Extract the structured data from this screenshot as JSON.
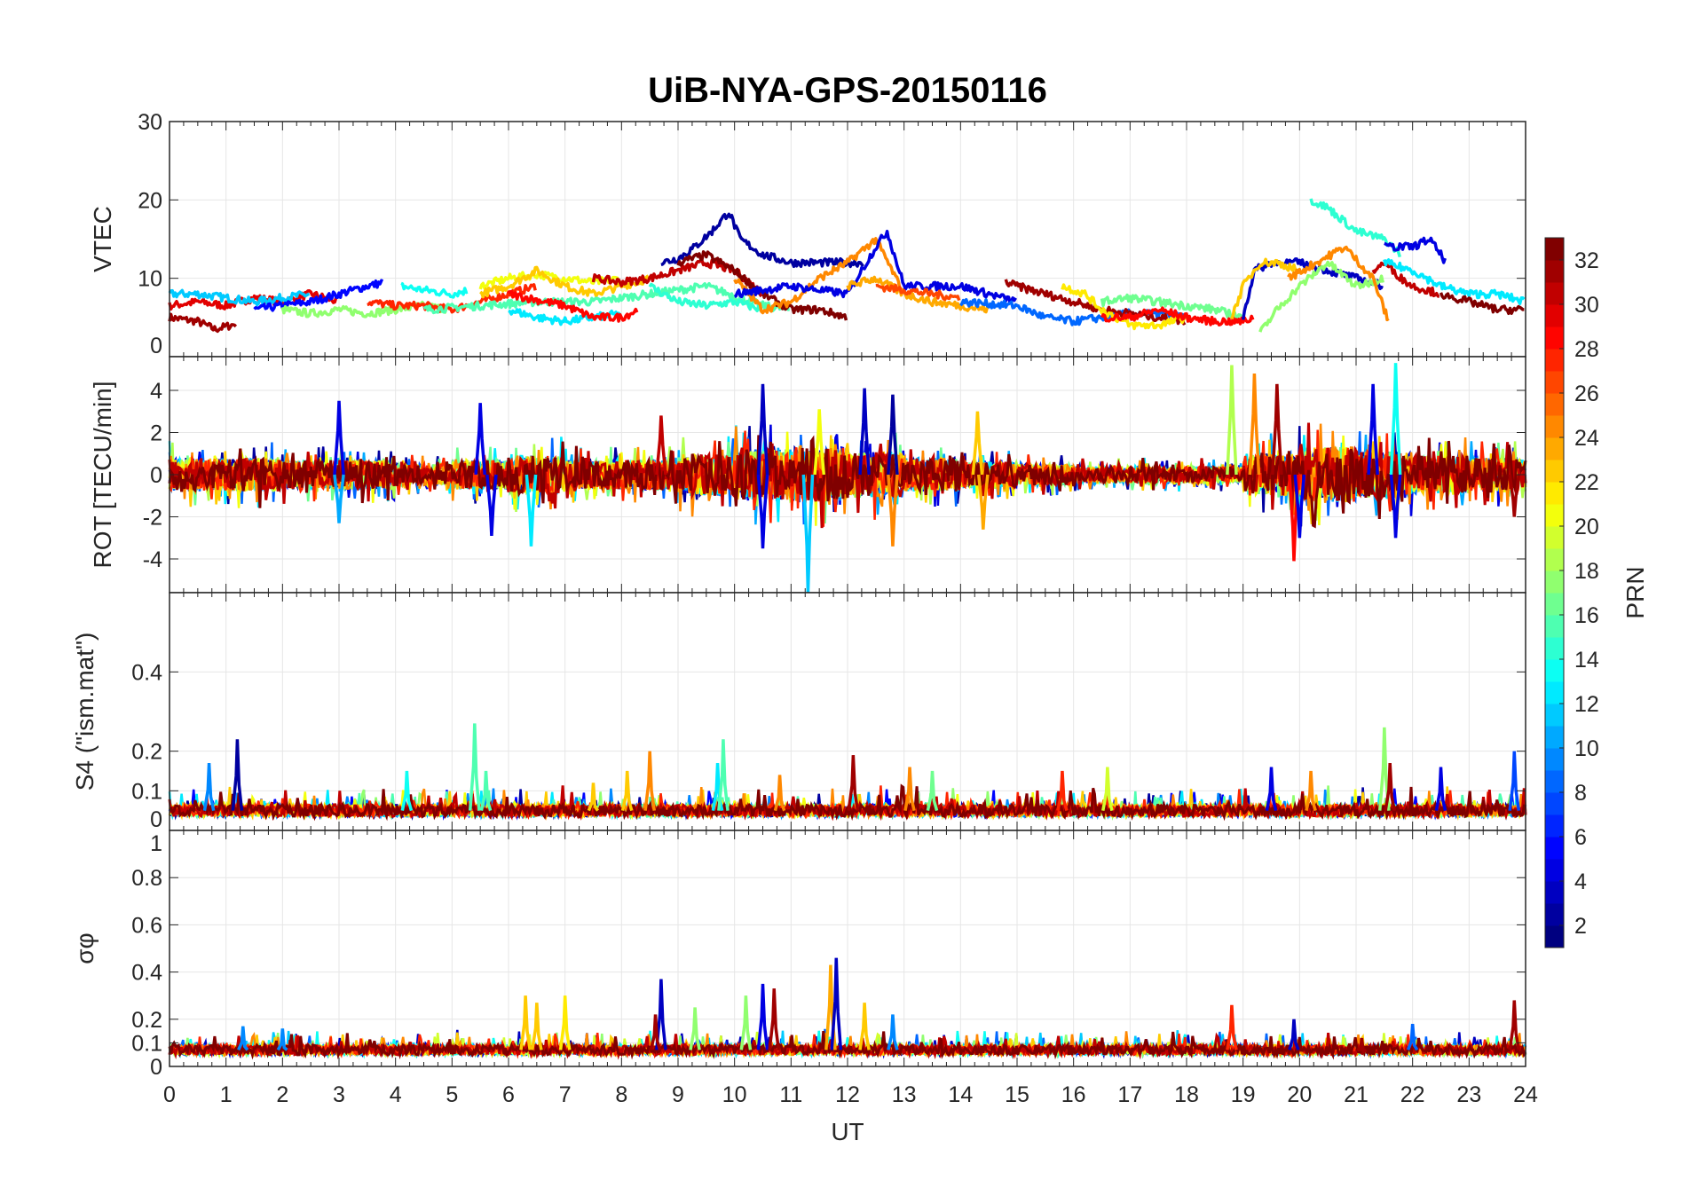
{
  "chart_data": {
    "type": "line",
    "title": "UiB-NYA-GPS-20150116",
    "xlabel": "UT",
    "xlim": [
      0,
      24
    ],
    "xticks": [
      0,
      1,
      2,
      3,
      4,
      5,
      6,
      7,
      8,
      9,
      10,
      11,
      12,
      13,
      14,
      15,
      16,
      17,
      18,
      19,
      20,
      21,
      22,
      23,
      24
    ],
    "grid": true,
    "colorbar": {
      "label": "PRN",
      "range": [
        1,
        32
      ],
      "ticks": [
        2,
        4,
        6,
        8,
        10,
        12,
        14,
        16,
        18,
        20,
        22,
        24,
        26,
        28,
        30,
        32
      ],
      "colormap": "jet",
      "placement": "right"
    },
    "panels": [
      {
        "id": "vtec",
        "ylabel": "VTEC",
        "ylim": [
          0,
          30
        ],
        "yticks": [
          0,
          10,
          20,
          30
        ],
        "noise": 0.5,
        "series": [
          {
            "prn": 31,
            "x": [
              0,
              0.5,
              0.8,
              1.2
            ],
            "y": [
              5,
              4.5,
              3.5,
              4.2
            ]
          },
          {
            "prn": 29,
            "x": [
              0,
              0.5,
              1,
              1.5,
              2,
              2.5,
              3
            ],
            "y": [
              6.5,
              7,
              6.5,
              7.5,
              7,
              8,
              7
            ]
          },
          {
            "prn": 11,
            "x": [
              0,
              0.5,
              1,
              1.5,
              2,
              2.5
            ],
            "y": [
              8,
              8,
              7.5,
              7,
              7.5,
              8
            ]
          },
          {
            "prn": 5,
            "x": [
              1.5,
              2,
              2.5,
              3,
              3.5,
              3.8
            ],
            "y": [
              6,
              6.5,
              7,
              8,
              9,
              9.5
            ]
          },
          {
            "prn": 17,
            "x": [
              2,
              2.5,
              3,
              3.5,
              4,
              4.5,
              5
            ],
            "y": [
              6,
              5.5,
              6,
              5.5,
              6,
              6.5,
              6
            ]
          },
          {
            "prn": 13,
            "x": [
              4.1,
              4.5,
              5,
              5.3
            ],
            "y": [
              9,
              8.5,
              8,
              8.5
            ]
          },
          {
            "prn": 27,
            "x": [
              3.5,
              4,
              4.5,
              5,
              5.5,
              6,
              6.5
            ],
            "y": [
              7,
              6.5,
              6.5,
              6,
              7,
              8,
              9
            ]
          },
          {
            "prn": 20,
            "x": [
              5.5,
              6,
              6.5,
              7,
              7.5,
              8
            ],
            "y": [
              9,
              10,
              10.5,
              10,
              9.5,
              10
            ]
          },
          {
            "prn": 22,
            "x": [
              5.5,
              6,
              6.5,
              7,
              7.5,
              8,
              8.5
            ],
            "y": [
              8,
              9,
              11,
              9,
              8,
              9,
              10
            ]
          },
          {
            "prn": 15,
            "x": [
              4.5,
              5.5,
              6.5,
              7.5,
              8.5,
              9.5,
              10.5,
              11
            ],
            "y": [
              6,
              6.5,
              7,
              7,
              8,
              9,
              6.5,
              6
            ]
          },
          {
            "prn": 12,
            "x": [
              6,
              6.5,
              7,
              7.5,
              8
            ],
            "y": [
              6,
              5,
              4.5,
              5,
              5.5
            ]
          },
          {
            "prn": 28,
            "x": [
              6,
              7,
              7.5,
              8,
              8.3
            ],
            "y": [
              8,
              6.5,
              5,
              5,
              6
            ]
          },
          {
            "prn": 30,
            "x": [
              7.5,
              8,
              8.5,
              9,
              9.5,
              10,
              10.5
            ],
            "y": [
              10,
              9.5,
              10,
              11,
              12,
              11,
              8
            ]
          },
          {
            "prn": 2,
            "x": [
              8.7,
              9,
              9.3,
              9.6,
              9.9,
              10.1,
              10.5,
              11,
              12,
              12.3
            ],
            "y": [
              12,
              12.5,
              14,
              16,
              18.5,
              15,
              13,
              12,
              12,
              12
            ]
          },
          {
            "prn": 14,
            "x": [
              8.5,
              9,
              9.5,
              10,
              10.5
            ],
            "y": [
              9,
              7,
              6.5,
              7,
              6
            ]
          },
          {
            "prn": 32,
            "x": [
              9,
              9.5,
              10,
              10.5,
              11,
              11.5,
              12
            ],
            "y": [
              12,
              13,
              11,
              8,
              6,
              6,
              5
            ]
          },
          {
            "prn": 24,
            "x": [
              10,
              10.5,
              11,
              11.5,
              12,
              12.5,
              13
            ],
            "y": [
              10,
              6,
              7,
              10,
              12,
              15,
              8
            ]
          },
          {
            "prn": 4,
            "x": [
              10,
              11,
              12,
              12.5,
              12.7,
              13,
              14,
              14.5,
              15
            ],
            "y": [
              8,
              9,
              8,
              14,
              16,
              9,
              9,
              8,
              7
            ]
          },
          {
            "prn": 23,
            "x": [
              12,
              12.5,
              13,
              13.5,
              14,
              14.5
            ],
            "y": [
              9,
              10,
              8,
              7,
              6.5,
              6
            ]
          },
          {
            "prn": 26,
            "x": [
              12.5,
              13,
              13.5,
              14
            ],
            "y": [
              9,
              8.5,
              8,
              7.5
            ]
          },
          {
            "prn": 8,
            "x": [
              14,
              15,
              15.5,
              16,
              16.5,
              17,
              17.5,
              18
            ],
            "y": [
              7,
              6.5,
              5,
              4.5,
              5,
              5.5,
              5.5,
              5
            ]
          },
          {
            "prn": 31,
            "x": [
              14.8,
              15,
              15.5,
              16,
              16.5,
              17,
              17.5,
              18
            ],
            "y": [
              9.5,
              9,
              8,
              7,
              6,
              5.5,
              5,
              4.5
            ]
          },
          {
            "prn": 21,
            "x": [
              15.8,
              16.2,
              16.5,
              17,
              17.5,
              18
            ],
            "y": [
              9,
              8,
              6,
              4,
              4,
              5
            ]
          },
          {
            "prn": 16,
            "x": [
              16.5,
              17,
              17.5,
              18,
              18.5,
              19
            ],
            "y": [
              7,
              7.5,
              7,
              6.5,
              6,
              5
            ]
          },
          {
            "prn": 28,
            "x": [
              16.5,
              17,
              17.5,
              18,
              18.5,
              19,
              19.2
            ],
            "y": [
              5,
              5,
              6,
              5,
              4.5,
              4.5,
              5
            ]
          },
          {
            "prn": 3,
            "x": [
              19,
              19.2,
              19.5,
              20,
              20.5,
              21,
              21.5
            ],
            "y": [
              5,
              11,
              12,
              12,
              11,
              10,
              9
            ]
          },
          {
            "prn": 22,
            "x": [
              18.8,
              19,
              19.3,
              19.6,
              20
            ],
            "y": [
              5,
              9,
              12,
              12,
              11
            ]
          },
          {
            "prn": 17,
            "x": [
              19.3,
              19.6,
              20,
              20.5,
              21,
              21.5
            ],
            "y": [
              3,
              6,
              9,
              12,
              9,
              10
            ]
          },
          {
            "prn": 14,
            "x": [
              20.2,
              20.5,
              21,
              21.5,
              21.8
            ],
            "y": [
              20,
              19,
              16,
              15,
              13
            ]
          },
          {
            "prn": 24,
            "x": [
              19.8,
              20.3,
              20.8,
              21.3,
              21.6
            ],
            "y": [
              10,
              12,
              14,
              10,
              4
            ]
          },
          {
            "prn": 30,
            "x": [
              21.3,
              21.5,
              21.8,
              22,
              22.5
            ],
            "y": [
              11,
              12,
              10,
              9,
              8
            ]
          },
          {
            "prn": 4,
            "x": [
              21.5,
              22,
              22.3,
              22.6
            ],
            "y": [
              14,
              14,
              15,
              12
            ]
          },
          {
            "prn": 12,
            "x": [
              21.5,
              22,
              22.5,
              23,
              23.5,
              24
            ],
            "y": [
              12,
              11,
              9,
              8,
              8,
              7
            ]
          },
          {
            "prn": 32,
            "x": [
              22.5,
              23,
              23.5,
              24
            ],
            "y": [
              8,
              7,
              6,
              6
            ]
          }
        ]
      },
      {
        "id": "rot",
        "ylabel": "ROT [TECU/min]",
        "ylim": [
          -5.6,
          5.6
        ],
        "yticks": [
          -4,
          -2,
          0,
          2,
          4
        ],
        "prns": [
          2,
          4,
          8,
          10,
          12,
          16,
          18,
          20,
          22,
          24,
          27,
          30,
          32
        ],
        "activity_hours": [
          0.8,
          0.8,
          0.7,
          0.7,
          0.5,
          0.7,
          0.9,
          0.7,
          0.7,
          1.0,
          1.2,
          1.3,
          1.1,
          0.8,
          0.6,
          0.5,
          0.4,
          0.4,
          0.4,
          1.0,
          1.3,
          1.1,
          0.9,
          0.8
        ],
        "spikes": [
          [
            3,
            3.5,
            4
          ],
          [
            3,
            -2.3,
            10
          ],
          [
            5.5,
            3.4,
            4
          ],
          [
            5.7,
            -2.9,
            4
          ],
          [
            6.4,
            -3.4,
            12
          ],
          [
            8.7,
            2.8,
            30
          ],
          [
            10.5,
            4.3,
            3
          ],
          [
            10.5,
            -3.5,
            4
          ],
          [
            11.3,
            -5.6,
            11
          ],
          [
            11.5,
            3.1,
            20
          ],
          [
            12.3,
            4.1,
            3
          ],
          [
            12.8,
            3.8,
            2
          ],
          [
            12.8,
            -3.4,
            24
          ],
          [
            14.3,
            3,
            22
          ],
          [
            14.4,
            -2.6,
            23
          ],
          [
            18.8,
            5.2,
            18
          ],
          [
            19.2,
            4.8,
            24
          ],
          [
            19.6,
            4.3,
            31
          ],
          [
            19.9,
            -4.1,
            28
          ],
          [
            20,
            -3,
            4
          ],
          [
            21.3,
            4.3,
            4
          ],
          [
            21.7,
            5.3,
            13
          ],
          [
            21.7,
            -3,
            4
          ],
          [
            23.8,
            -2,
            31
          ]
        ]
      },
      {
        "id": "s4",
        "ylabel": "S4 (\"ism.mat\")",
        "ylim": [
          0,
          0.6
        ],
        "yticks": [
          0,
          0.1,
          0.2,
          0.4
        ],
        "baseline": 0.05,
        "prns": [
          2,
          5,
          9,
          12,
          15,
          17,
          20,
          22,
          24,
          27,
          30,
          32
        ],
        "spikes": [
          [
            0.7,
            0.17,
            9
          ],
          [
            1.2,
            0.23,
            2
          ],
          [
            4.2,
            0.15,
            13
          ],
          [
            5.4,
            0.27,
            15
          ],
          [
            5.6,
            0.15,
            15
          ],
          [
            7.5,
            0.12,
            22
          ],
          [
            8.1,
            0.15,
            22
          ],
          [
            8.5,
            0.2,
            24
          ],
          [
            9.7,
            0.17,
            12
          ],
          [
            9.8,
            0.23,
            15
          ],
          [
            10.8,
            0.14,
            24
          ],
          [
            12.1,
            0.19,
            31
          ],
          [
            13.1,
            0.16,
            24
          ],
          [
            13.5,
            0.15,
            16
          ],
          [
            15.8,
            0.15,
            27
          ],
          [
            16.6,
            0.16,
            19
          ],
          [
            19.5,
            0.16,
            4
          ],
          [
            20.2,
            0.15,
            24
          ],
          [
            21.5,
            0.26,
            17
          ],
          [
            21.6,
            0.17,
            31
          ],
          [
            22.5,
            0.16,
            4
          ],
          [
            23.8,
            0.2,
            7
          ]
        ]
      },
      {
        "id": "sigma",
        "ylabel": "σφ",
        "ylim": [
          0,
          1
        ],
        "yticks": [
          0,
          0.1,
          0.2,
          0.4,
          0.6,
          0.8,
          1
        ],
        "baseline": 0.07,
        "prns": [
          3,
          8,
          11,
          13,
          17,
          19,
          22,
          24,
          27,
          30,
          32
        ],
        "spikes": [
          [
            1.3,
            0.17,
            9
          ],
          [
            2,
            0.16,
            9
          ],
          [
            6.3,
            0.3,
            22
          ],
          [
            6.5,
            0.27,
            22
          ],
          [
            7,
            0.3,
            21
          ],
          [
            8.7,
            0.37,
            3
          ],
          [
            8.6,
            0.22,
            31
          ],
          [
            9.3,
            0.25,
            17
          ],
          [
            10.2,
            0.3,
            17
          ],
          [
            10.5,
            0.35,
            4
          ],
          [
            10.7,
            0.33,
            31
          ],
          [
            11.7,
            0.43,
            23
          ],
          [
            11.8,
            0.46,
            3
          ],
          [
            12.3,
            0.27,
            22
          ],
          [
            12.8,
            0.22,
            9
          ],
          [
            18.8,
            0.26,
            27
          ],
          [
            19.9,
            0.2,
            3
          ],
          [
            21.1,
            0.12,
            31
          ],
          [
            22,
            0.18,
            8
          ],
          [
            23.8,
            0.28,
            31
          ]
        ]
      }
    ]
  }
}
